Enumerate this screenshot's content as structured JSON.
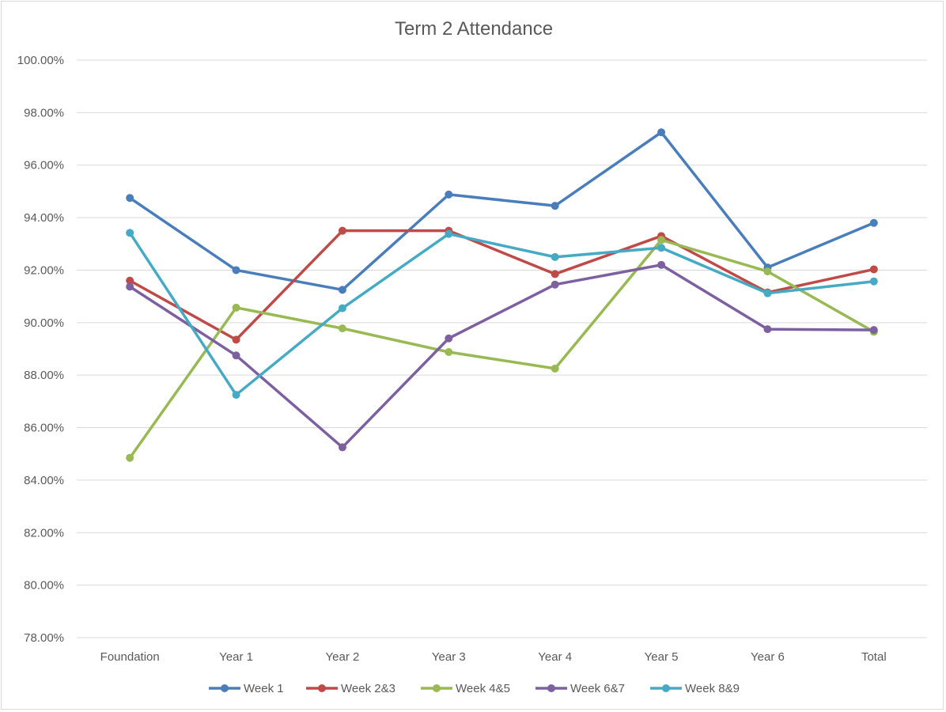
{
  "chart_data": {
    "type": "line",
    "title": "Term 2 Attendance",
    "categories": [
      "Foundation",
      "Year 1",
      "Year 2",
      "Year 3",
      "Year 4",
      "Year 5",
      "Year 6",
      "Total"
    ],
    "ylim": [
      78,
      100
    ],
    "ytick_step": 2,
    "ytick_labels": [
      "78.00%",
      "80.00%",
      "82.00%",
      "84.00%",
      "86.00%",
      "88.00%",
      "90.00%",
      "92.00%",
      "94.00%",
      "96.00%",
      "98.00%",
      "100.00%"
    ],
    "grid": true,
    "legend_position": "bottom",
    "series": [
      {
        "name": "Week 1",
        "color": "#4a7ebb",
        "values": [
          94.75,
          92.0,
          91.25,
          94.88,
          94.45,
          97.25,
          92.1,
          93.8
        ]
      },
      {
        "name": "Week 2&3",
        "color": "#be4b48",
        "values": [
          91.6,
          89.35,
          93.5,
          93.5,
          91.85,
          93.3,
          91.15,
          92.03
        ]
      },
      {
        "name": "Week 4&5",
        "color": "#98b954",
        "values": [
          84.85,
          90.57,
          89.78,
          88.88,
          88.25,
          93.15,
          91.95,
          89.65
        ]
      },
      {
        "name": "Week 6&7",
        "color": "#7d60a0",
        "values": [
          91.37,
          88.75,
          85.25,
          89.4,
          91.45,
          92.2,
          89.75,
          89.72
        ]
      },
      {
        "name": "Week 8&9",
        "color": "#46aac5",
        "values": [
          93.42,
          87.25,
          90.55,
          93.38,
          92.5,
          92.85,
          91.12,
          91.57
        ]
      }
    ]
  }
}
